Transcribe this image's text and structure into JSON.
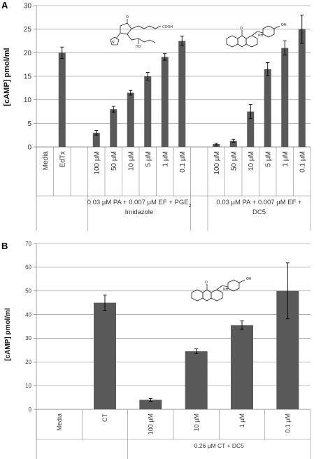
{
  "chart_data": [
    {
      "panel": "A",
      "type": "bar",
      "title": "",
      "xlabel": "",
      "ylabel": "[cAMP] pmol/ml",
      "ylim": [
        0,
        30
      ],
      "yticks": [
        "0",
        "5",
        "10",
        "15",
        "20",
        "25",
        "30"
      ],
      "grid": true,
      "legend": "none",
      "bar_color": "#595959",
      "categories": [
        "Media",
        "EdTx",
        "",
        "100 µM",
        "50 µM",
        "10 µM",
        "5 µM",
        "1 µM",
        "0.1 µM",
        "",
        "100 µM",
        "50 µM",
        "10 µM",
        "5 µM",
        "1 µM",
        "0.1 µM"
      ],
      "values": [
        null,
        20.0,
        null,
        3.0,
        8.0,
        11.5,
        15.0,
        19.1,
        22.5,
        null,
        0.6,
        1.3,
        7.5,
        16.5,
        21.0,
        25.0
      ],
      "errors": [
        null,
        1.2,
        null,
        0.5,
        0.6,
        0.5,
        0.8,
        0.7,
        1.0,
        null,
        0.2,
        0.3,
        1.5,
        1.4,
        1.5,
        3.0
      ],
      "group_labels": [
        {
          "line1": "0.03 µM PA + 0.007 µM EF + PGE",
          "sub": "2",
          "line2": "Imidazole"
        },
        {
          "line1": "0.03 µM PA + 0.007 µM EF +",
          "sub": "",
          "line2": "DC5"
        }
      ]
    },
    {
      "panel": "B",
      "type": "bar",
      "title": "",
      "xlabel": "",
      "ylabel": "[cAMP] pmol/ml",
      "ylim": [
        0,
        70
      ],
      "yticks": [
        "0",
        "10",
        "20",
        "30",
        "40",
        "50",
        "60",
        "70"
      ],
      "grid": true,
      "legend": "none",
      "bar_color": "#595959",
      "categories": [
        "Media",
        "CT",
        "100 µM",
        "10 µM",
        "1 µM",
        "0.1 µM"
      ],
      "values": [
        null,
        45.0,
        4.0,
        24.5,
        35.5,
        50.0
      ],
      "errors": [
        null,
        3.2,
        0.6,
        1.0,
        1.8,
        11.8
      ],
      "group_labels": [
        {
          "line1": "0.26 µM CT + DC5",
          "sub": "",
          "line2": ""
        }
      ]
    }
  ]
}
